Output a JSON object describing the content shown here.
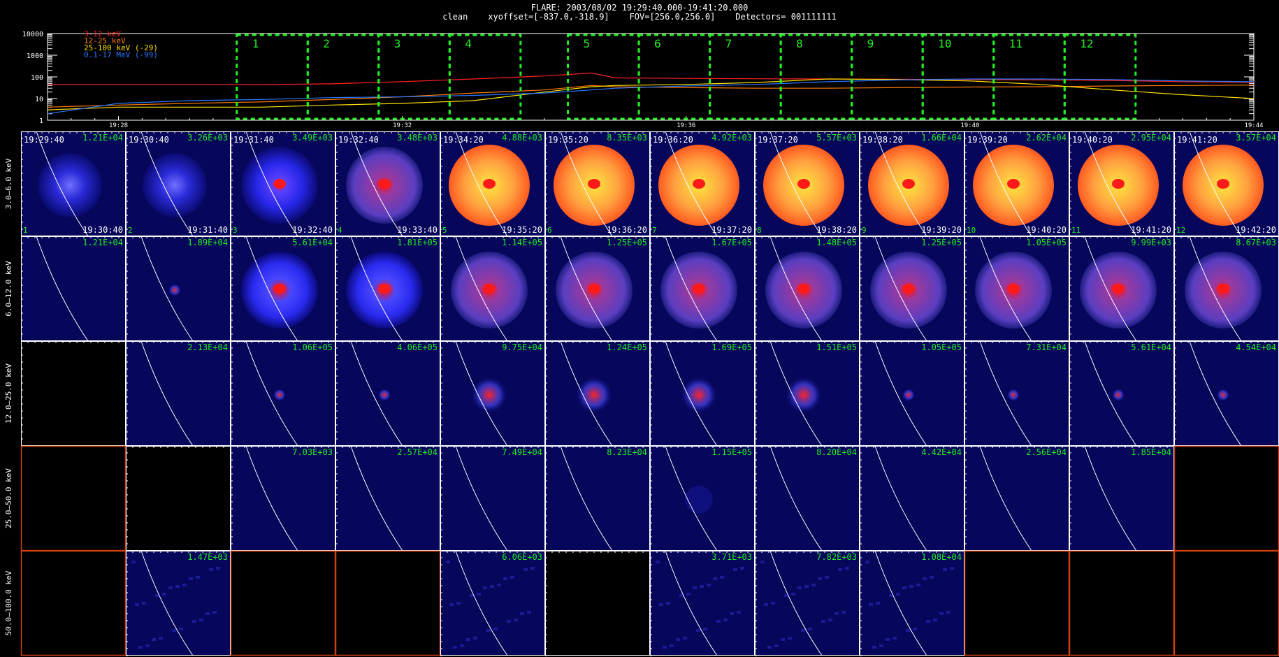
{
  "header": {
    "line1": "FLARE: 2003/08/02 19:29:40.000-19:41:20.000",
    "line2": "clean    xyoffset=[-837.0,-318.9]    FOV=[256.0,256.0]    Detectors= 001111111"
  },
  "lightcurve": {
    "y_ticks": [
      "10000",
      "1000",
      "100",
      "10",
      "1"
    ],
    "x_ticks": [
      "19:28",
      "19:32",
      "19:36",
      "19:40",
      "19:44"
    ],
    "legend": [
      {
        "label": "3-12 keV",
        "color": "#ff2020"
      },
      {
        "label": "12-25 keV",
        "color": "#ff7a00"
      },
      {
        "label": "25-100 keV (-29)",
        "color": "#ffe000"
      },
      {
        "label": "0.1-17 MeV (-99)",
        "color": "#2878ff"
      }
    ],
    "interval_labels": [
      "1",
      "2",
      "3",
      "4",
      "5",
      "6",
      "7",
      "8",
      "9",
      "10",
      "11",
      "12"
    ],
    "box_color": "#22ee22"
  },
  "chart_data": {
    "type": "line",
    "title": "FLARE: 2003/08/02 19:29:40.000-19:41:20.000",
    "ylim": [
      1,
      10000
    ],
    "y_scale": "log",
    "xlim": [
      "19:27:00",
      "19:44:00"
    ],
    "x": [
      "19:27:00",
      "19:28:00",
      "19:29:00",
      "19:30:00",
      "19:31:00",
      "19:32:00",
      "19:33:00",
      "19:34:00",
      "19:34:40",
      "19:35:00",
      "19:36:00",
      "19:37:00",
      "19:38:00",
      "19:39:00",
      "19:40:00",
      "19:41:00",
      "19:42:00",
      "19:43:00",
      "19:44:00"
    ],
    "series": [
      {
        "name": "3-12 keV",
        "color": "#ff2020",
        "values": [
          45,
          45,
          45,
          44,
          48,
          60,
          80,
          110,
          150,
          90,
          85,
          82,
          80,
          78,
          75,
          72,
          68,
          60,
          55
        ]
      },
      {
        "name": "12-25 keV",
        "color": "#ff7a00",
        "values": [
          4,
          5,
          6,
          7,
          9,
          12,
          18,
          25,
          40,
          35,
          32,
          30,
          30,
          32,
          34,
          35,
          38,
          40,
          42
        ]
      },
      {
        "name": "25-100 keV (-29)",
        "color": "#ffe000",
        "values": [
          3,
          4,
          4,
          4,
          5,
          6,
          8,
          20,
          35,
          40,
          45,
          55,
          80,
          75,
          65,
          45,
          25,
          15,
          10
        ]
      },
      {
        "name": "0.1-17 MeV (-99)",
        "color": "#2878ff",
        "values": [
          2,
          6,
          8,
          9,
          11,
          12,
          14,
          18,
          25,
          30,
          38,
          45,
          60,
          72,
          80,
          80,
          75,
          65,
          60
        ]
      }
    ]
  },
  "image_grid": {
    "row_labels": [
      "3.0—6.0 keV",
      "6.0—12.0 keV",
      "12.0—25.0 keV",
      "25.0—50.0 keV",
      "50.0—100.0 keV"
    ],
    "start_times": [
      "19:29:40",
      "19:30:40",
      "19:31:40",
      "19:32:40",
      "19:34:20",
      "19:35:20",
      "19:36:20",
      "19:37:20",
      "19:38:20",
      "19:39:20",
      "19:40:20",
      "19:41:20"
    ],
    "end_times": [
      "19:30:40",
      "19:31:40",
      "19:32:40",
      "19:33:40",
      "19:35:20",
      "19:36:20",
      "19:37:20",
      "19:38:20",
      "19:39:20",
      "19:40:20",
      "19:41:20",
      "19:42:20"
    ],
    "interval_numbers": [
      "1",
      "2",
      "3",
      "4",
      "5",
      "6",
      "7",
      "8",
      "9",
      "10",
      "11",
      "12"
    ],
    "maxima": [
      [
        "1.21E+04",
        "3.26E+03",
        "3.49E+03",
        "3.48E+03",
        "4.88E+03",
        "8.35E+03",
        "4.92E+03",
        "5.57E+03",
        "1.66E+04",
        "2.62E+04",
        "2.95E+04",
        "3.57E+04"
      ],
      [
        "1.21E+04",
        "1.89E+04",
        "5.61E+04",
        "1.81E+05",
        "1.14E+05",
        "1.25E+05",
        "1.67E+05",
        "1.48E+05",
        "1.25E+05",
        "1.05E+05",
        "9.99E+03",
        "8.67E+03"
      ],
      [
        "",
        "2.13E+04",
        "1.06E+05",
        "4.06E+05",
        "9.75E+04",
        "1.24E+05",
        "1.69E+05",
        "1.51E+05",
        "1.05E+05",
        "7.31E+04",
        "5.61E+04",
        "4.54E+04"
      ],
      [
        "",
        "",
        "7.03E+03",
        "2.57E+04",
        "7.49E+04",
        "8.23E+04",
        "1.15E+05",
        "8.20E+04",
        "4.42E+04",
        "2.56E+04",
        "1.85E+04",
        ""
      ],
      [
        "",
        "1.47E+03",
        "",
        "",
        "6.06E+03",
        "",
        "3.71E+03",
        "7.82E+03",
        "1.08E+04",
        "",
        "",
        ""
      ]
    ],
    "cell_kind": [
      [
        "soft",
        "soft",
        "blue",
        "purple",
        "orange",
        "orange",
        "orange",
        "orange",
        "orange",
        "orange",
        "orange",
        "orange"
      ],
      [
        "empty",
        "dot",
        "ring",
        "ring",
        "purple",
        "purple",
        "purple",
        "purple",
        "purple",
        "purple",
        "purple",
        "purple"
      ],
      [
        "black",
        "empty",
        "dot",
        "dot",
        "blob",
        "blob",
        "blob",
        "blob",
        "dot",
        "dot",
        "dot",
        "dot"
      ],
      [
        "axes",
        "black",
        "empty",
        "empty",
        "empty",
        "empty",
        "faint",
        "empty",
        "empty",
        "empty",
        "empty",
        "axes"
      ],
      [
        "axes",
        "noise",
        "axes",
        "axes",
        "noise",
        "black",
        "noise",
        "noise",
        "noise",
        "axes",
        "axes",
        "axes"
      ]
    ]
  }
}
